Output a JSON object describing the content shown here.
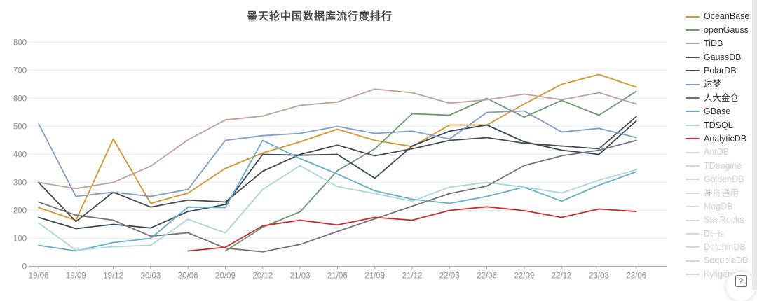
{
  "page": {
    "background": "#ffffff",
    "edge_strip_color": "#e9e9e9"
  },
  "help_button": {
    "glyph": "?"
  },
  "legend": {
    "active_text_color": "#333333",
    "inactive_text_color": "#cfcfcf",
    "inactive_swatch_color": "#d6d6d6"
  },
  "chart_data": {
    "type": "line",
    "title": "墨天轮中国数据库流行度排行",
    "xlabel": "",
    "ylabel": "",
    "ylim": [
      0,
      800
    ],
    "ytick_step": 100,
    "grid": "horizontal",
    "gridline_color": "#e7eef8",
    "axis_color": "#aaaaaa",
    "tick_label_color": "#8a8f99",
    "legend_position": "right",
    "categories": [
      "19/06",
      "19/09",
      "19/12",
      "20/03",
      "20/06",
      "20/09",
      "20/12",
      "21/03",
      "21/06",
      "21/09",
      "21/12",
      "22/03",
      "22/06",
      "22/09",
      "22/12",
      "23/03",
      "23/06"
    ],
    "series": [
      {
        "name": "OceanBase",
        "color": "#d9932b",
        "values": [
          210,
          165,
          455,
          225,
          262,
          350,
          405,
          445,
          490,
          450,
          428,
          505,
          505,
          580,
          650,
          685,
          640
        ]
      },
      {
        "name": "openGauss",
        "color": "#689a6c",
        "values": [
          null,
          null,
          null,
          null,
          null,
          55,
          140,
          195,
          342,
          420,
          545,
          540,
          600,
          533,
          593,
          540,
          625
        ]
      },
      {
        "name": "TiDB",
        "color": "#c3a096",
        "values": [
          300,
          278,
          300,
          358,
          452,
          523,
          537,
          575,
          587,
          633,
          620,
          583,
          595,
          615,
          595,
          620,
          580
        ]
      },
      {
        "name": "GaussDB",
        "color": "#4b4b4b",
        "values": [
          300,
          160,
          265,
          212,
          237,
          230,
          340,
          400,
          433,
          395,
          420,
          450,
          460,
          440,
          430,
          420,
          535
        ]
      },
      {
        "name": "PolarDB",
        "color": "#36485e",
        "values": [
          175,
          135,
          150,
          137,
          196,
          221,
          400,
          397,
          400,
          315,
          430,
          483,
          505,
          445,
          415,
          400,
          520
        ]
      },
      {
        "name": "达梦",
        "color": "#7e9dc7",
        "values": [
          510,
          250,
          265,
          250,
          275,
          450,
          467,
          475,
          500,
          475,
          483,
          455,
          550,
          555,
          480,
          493,
          460
        ]
      },
      {
        "name": "人大金仓",
        "color": "#73737c",
        "values": [
          230,
          183,
          165,
          108,
          120,
          65,
          52,
          78,
          125,
          170,
          215,
          260,
          287,
          360,
          395,
          415,
          450
        ]
      },
      {
        "name": "GBase",
        "color": "#63aec8",
        "values": [
          75,
          55,
          85,
          100,
          212,
          210,
          450,
          385,
          330,
          270,
          240,
          225,
          250,
          283,
          233,
          290,
          338
        ]
      },
      {
        "name": "TDSQL",
        "color": "#a7d6dc",
        "values": [
          155,
          58,
          70,
          75,
          168,
          120,
          275,
          360,
          285,
          260,
          233,
          283,
          300,
          283,
          262,
          308,
          345
        ]
      },
      {
        "name": "AnalyticDB",
        "color": "#cc2b2b",
        "values": [
          null,
          null,
          null,
          null,
          55,
          68,
          145,
          165,
          148,
          175,
          165,
          200,
          213,
          199,
          175,
          205,
          196
        ]
      }
    ],
    "inactive_series": [
      "AntDB",
      "TDengine",
      "GoldenDB",
      "神舟通用",
      "MogDB",
      "StarRocks",
      "Doris",
      "DolphinDB",
      "SequoiaDB",
      "Kyligence"
    ]
  }
}
